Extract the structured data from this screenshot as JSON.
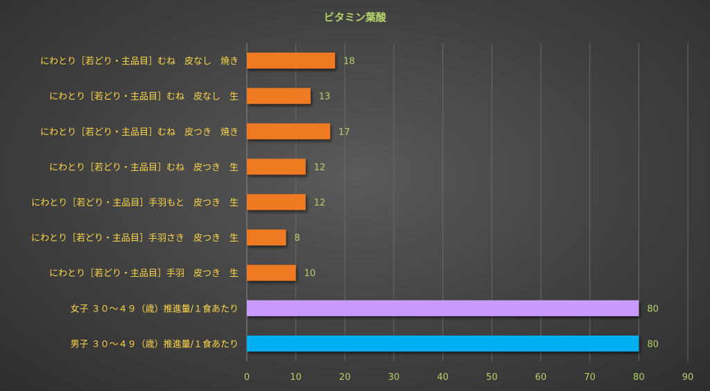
{
  "chart_data": {
    "type": "bar",
    "orientation": "horizontal",
    "title": "ビタミン葉酸",
    "xlabel": "",
    "ylabel": "",
    "xlim": [
      0,
      90
    ],
    "ticks": [
      0,
      10,
      20,
      30,
      40,
      50,
      60,
      70,
      80,
      90
    ],
    "grid": true,
    "legend": "none",
    "categories": [
      "にわとり［若どり・主品目］むね　皮なし　焼き",
      "にわとり［若どり・主品目］むね　皮なし　生",
      "にわとり［若どり・主品目］むね　皮つき　焼き",
      "にわとり［若どり・主品目］むね　皮つき　生",
      "にわとり［若どり・主品目］手羽もと　皮つき　生",
      "にわとり［若どり・主品目］手羽さき　皮つき　生",
      "にわとり［若どり・主品目］手羽　皮つき　生",
      "女子 ３０～４９（歳）推進量/１食あたり",
      "男子 ３０～４９（歳）推進量/１食あたり"
    ],
    "values": [
      18,
      13,
      17,
      12,
      12,
      8,
      10,
      80,
      80
    ],
    "bar_colors": [
      "#f07a24",
      "#f07a24",
      "#f07a24",
      "#f07a24",
      "#f07a24",
      "#f07a24",
      "#f07a24",
      "#c99bff",
      "#00b0f0"
    ]
  }
}
